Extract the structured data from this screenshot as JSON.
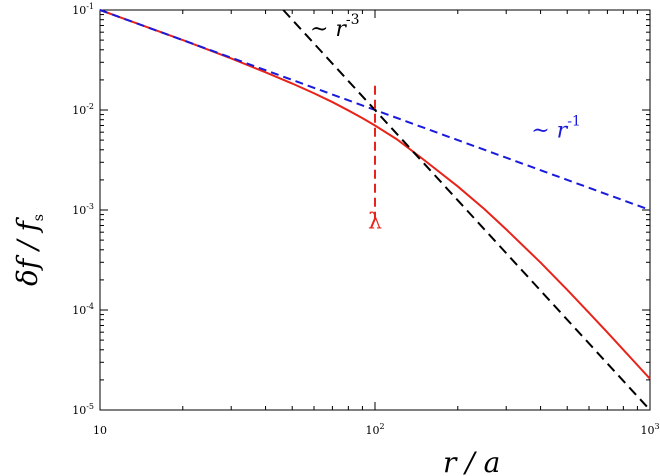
{
  "chart_data": {
    "type": "line",
    "xscale": "log",
    "yscale": "log",
    "xlim": [
      10,
      1000
    ],
    "ylim": [
      1e-05,
      0.1
    ],
    "x_ticks": [
      {
        "base": "10",
        "exp": "",
        "value": 10
      },
      {
        "base": "10",
        "exp": "2",
        "value": 100
      },
      {
        "base": "10",
        "exp": "3",
        "value": 1000
      }
    ],
    "y_ticks": [
      {
        "base": "10",
        "exp": "-1",
        "value": 0.1
      },
      {
        "base": "10",
        "exp": "-2",
        "value": 0.01
      },
      {
        "base": "10",
        "exp": "-3",
        "value": 0.001
      },
      {
        "base": "10",
        "exp": "-4",
        "value": 0.0001
      },
      {
        "base": "10",
        "exp": "-5",
        "value": 1e-05
      }
    ],
    "xlabel": {
      "main": "r / a"
    },
    "ylabel": {
      "main": "δf / f",
      "sub": "s"
    },
    "series": [
      {
        "color": "#e8231a",
        "style": "solid",
        "points": [
          [
            10,
            0.1
          ],
          [
            20,
            0.05
          ],
          [
            30,
            0.0328
          ],
          [
            40,
            0.0238
          ],
          [
            50,
            0.0184
          ],
          [
            60,
            0.0147
          ],
          [
            70,
            0.012
          ],
          [
            80,
            0.0099
          ],
          [
            90,
            0.0083
          ],
          [
            100,
            0.007
          ],
          [
            120,
            0.0051
          ],
          [
            150,
            0.0032
          ],
          [
            200,
            0.00172
          ],
          [
            250,
            0.00102
          ],
          [
            300,
            0.00064
          ],
          [
            400,
            0.000298
          ],
          [
            500,
            0.000159
          ],
          [
            600,
            9.38e-05
          ],
          [
            700,
            5.96e-05
          ],
          [
            800,
            4e-05
          ],
          [
            900,
            2.81e-05
          ],
          [
            1000,
            2.05e-05
          ]
        ]
      },
      {
        "color": "#1a1adc",
        "style": "dashed",
        "points": [
          [
            10,
            0.1
          ],
          [
            1000,
            0.001
          ]
        ]
      },
      {
        "color": "#000000",
        "style": "dashed",
        "points": [
          [
            46.4,
            0.1
          ],
          [
            1000,
            1e-05
          ]
        ]
      }
    ],
    "annotations": [
      {
        "id": "r-3",
        "prefix": "~ r",
        "exp": "-3",
        "color": "#000000",
        "x": 58,
        "y": 0.055
      },
      {
        "id": "r-1",
        "prefix": "~ r",
        "exp": "-1",
        "color": "#1a1adc",
        "x": 370,
        "y": 0.0053
      },
      {
        "id": "lambda",
        "prefix": "λ",
        "exp": "",
        "color": "#e8231a",
        "x": 100,
        "y": 0.00065
      }
    ],
    "vline": {
      "x": 100,
      "y_range": [
        0.0008,
        0.0175
      ],
      "color": "#e8231a",
      "style": "dashed"
    },
    "grid": false
  }
}
